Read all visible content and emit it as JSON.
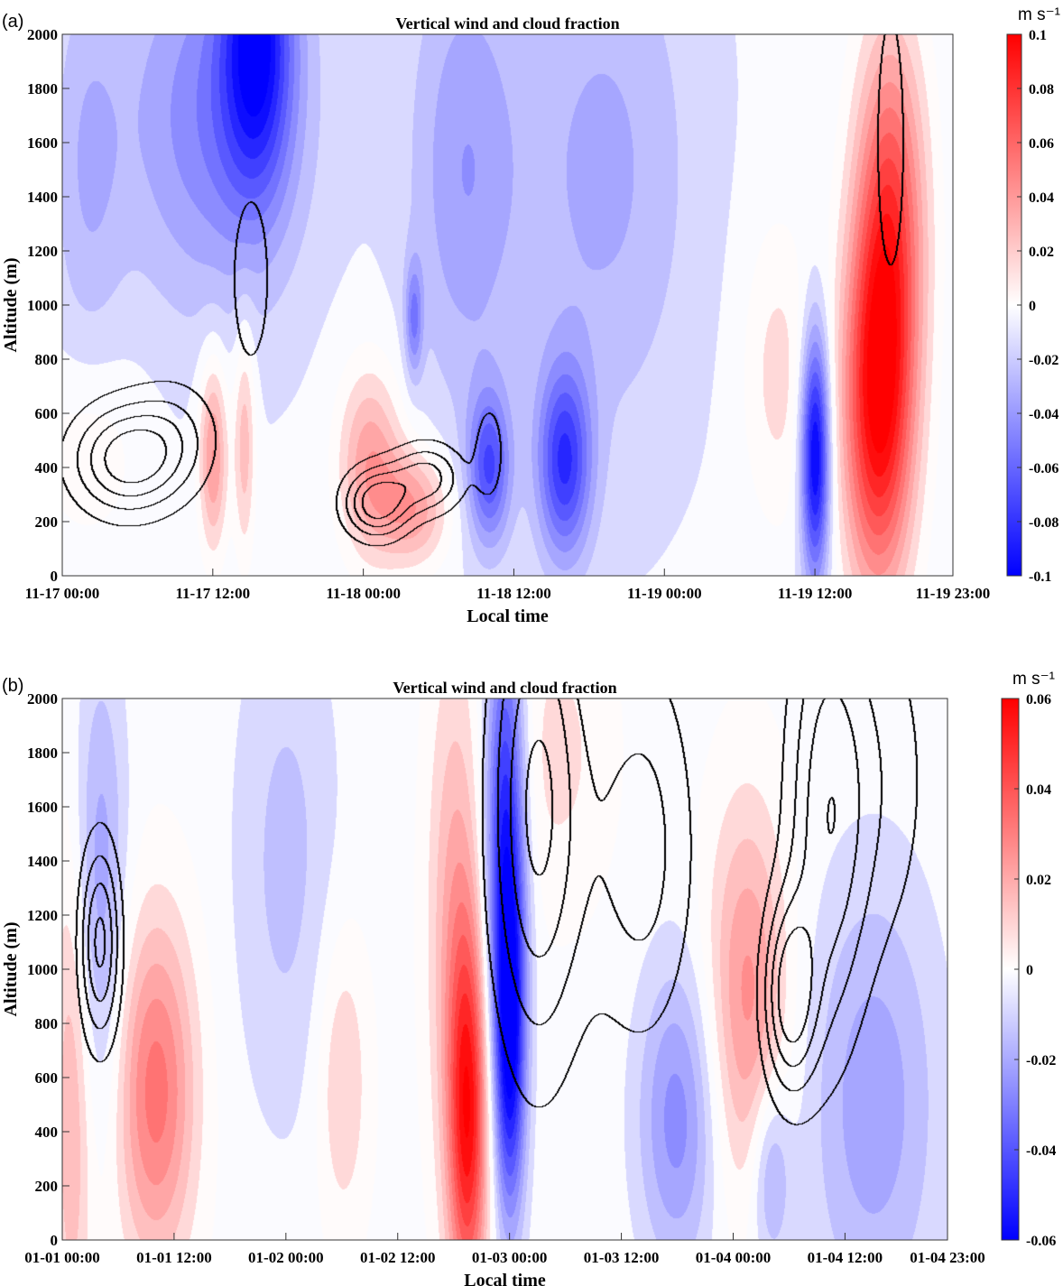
{
  "colors": {
    "neg": "#0000ff",
    "zero": "#ffffff",
    "pos": "#ff0000",
    "contour": "#000000"
  },
  "chart_data": [
    {
      "type": "heatmap",
      "panel_label": "(a)",
      "title": "Vertical wind and cloud fraction",
      "xlabel": "Local time",
      "ylabel": "Altitude (m)",
      "xlim_hours": [
        0,
        71
      ],
      "ylim": [
        0,
        2000
      ],
      "xticks": [
        {
          "h": 0,
          "label": "11-17 00:00"
        },
        {
          "h": 12,
          "label": "11-17 12:00"
        },
        {
          "h": 24,
          "label": "11-18 00:00"
        },
        {
          "h": 36,
          "label": "11-18 12:00"
        },
        {
          "h": 48,
          "label": "11-19 00:00"
        },
        {
          "h": 60,
          "label": "11-19 12:00"
        },
        {
          "h": 71,
          "label": "11-19 23:00"
        }
      ],
      "yticks": [
        0,
        200,
        400,
        600,
        800,
        1000,
        1200,
        1400,
        1600,
        1800,
        2000
      ],
      "colorbar": {
        "unit": "m s⁻¹",
        "range": [
          -0.1,
          0.1
        ],
        "ticks": [
          "0.1",
          "0.08",
          "0.06",
          "0.04",
          "0.02",
          "0",
          "-0.02",
          "-0.04",
          "-0.06",
          "-0.08",
          "-0.1"
        ]
      },
      "cloud_levels": [
        0.2,
        0.4,
        0.6,
        0.8
      ],
      "wind_baseline": -0.008,
      "wind_features": [
        [
          15.5,
          2000,
          -0.08,
          2,
          400
        ],
        [
          12,
          1700,
          -0.04,
          5,
          500
        ],
        [
          2,
          1500,
          -0.02,
          2,
          500
        ],
        [
          12,
          450,
          0.05,
          0.8,
          250
        ],
        [
          14.5,
          500,
          0.035,
          0.6,
          300
        ],
        [
          2,
          450,
          0.015,
          3,
          250
        ],
        [
          24.5,
          420,
          0.045,
          1.8,
          250
        ],
        [
          28,
          250,
          0.045,
          2,
          150
        ],
        [
          32,
          1500,
          -0.03,
          3,
          600
        ],
        [
          28,
          950,
          -0.04,
          0.5,
          150
        ],
        [
          34,
          400,
          -0.06,
          1.2,
          200
        ],
        [
          40,
          420,
          -0.07,
          1.5,
          250
        ],
        [
          43,
          1500,
          -0.025,
          5,
          700
        ],
        [
          57,
          750,
          0.022,
          2,
          400
        ],
        [
          60,
          450,
          -0.1,
          0.8,
          320
        ],
        [
          65,
          600,
          0.1,
          2,
          480
        ],
        [
          66,
          1350,
          0.07,
          2,
          500
        ]
      ],
      "cloud_features": [
        [
          5,
          430,
          0.9,
          3,
          140
        ],
        [
          9,
          520,
          0.35,
          2.5,
          150
        ],
        [
          15,
          1100,
          0.33,
          1.3,
          280
        ],
        [
          25,
          270,
          0.95,
          1.8,
          90
        ],
        [
          29,
          360,
          0.7,
          2,
          90
        ],
        [
          34,
          460,
          0.33,
          0.9,
          140
        ],
        [
          66,
          1600,
          0.33,
          1,
          450
        ]
      ]
    },
    {
      "type": "heatmap",
      "panel_label": "(b)",
      "title": "Vertical wind and cloud fraction",
      "xlabel": "Local time",
      "ylabel": "Altitude (m)",
      "xlim_hours": [
        0,
        95
      ],
      "ylim": [
        0,
        2000
      ],
      "xticks": [
        {
          "h": 0,
          "label": "01-01 00:00"
        },
        {
          "h": 12,
          "label": "01-01 12:00"
        },
        {
          "h": 24,
          "label": "01-02 00:00"
        },
        {
          "h": 36,
          "label": "01-02 12:00"
        },
        {
          "h": 48,
          "label": "01-03 00:00"
        },
        {
          "h": 60,
          "label": "01-03 12:00"
        },
        {
          "h": 72,
          "label": "01-04 00:00"
        },
        {
          "h": 84,
          "label": "01-04 12:00"
        },
        {
          "h": 95,
          "label": "01-04 23:00"
        }
      ],
      "yticks": [
        0,
        200,
        400,
        600,
        800,
        1000,
        1200,
        1400,
        1600,
        1800,
        2000
      ],
      "colorbar": {
        "unit": "m s⁻¹",
        "range": [
          -0.06,
          0.06
        ],
        "ticks": [
          "0.06",
          "0.04",
          "0.02",
          "0",
          "-0.02",
          "-0.04",
          "-0.06"
        ]
      },
      "cloud_levels": [
        0.2,
        0.4,
        0.6,
        0.8
      ],
      "wind_baseline": -0.002,
      "wind_features": [
        [
          10,
          550,
          0.035,
          3,
          450
        ],
        [
          1,
          500,
          0.02,
          1.5,
          700
        ],
        [
          4,
          1300,
          -0.02,
          2,
          600
        ],
        [
          30,
          600,
          0.015,
          2,
          400
        ],
        [
          43.5,
          450,
          0.055,
          1.5,
          500
        ],
        [
          42,
          1200,
          0.02,
          2,
          700
        ],
        [
          47.5,
          1500,
          -0.05,
          1.5,
          600
        ],
        [
          48,
          700,
          -0.05,
          1.2,
          450
        ],
        [
          53,
          1800,
          0.01,
          4,
          400
        ],
        [
          66,
          450,
          -0.025,
          3,
          400
        ],
        [
          73.5,
          900,
          0.028,
          3,
          500
        ],
        [
          76,
          250,
          -0.02,
          1.5,
          250
        ],
        [
          87,
          500,
          -0.02,
          5,
          600
        ],
        [
          24,
          1400,
          -0.012,
          4,
          700
        ]
      ],
      "cloud_features": [
        [
          4,
          1100,
          0.85,
          1.5,
          260
        ],
        [
          51,
          1600,
          0.85,
          3.5,
          650
        ],
        [
          62,
          1450,
          0.5,
          4,
          500
        ],
        [
          78,
          900,
          0.85,
          2,
          250
        ],
        [
          82,
          1550,
          0.7,
          3,
          600
        ],
        [
          88,
          1700,
          0.3,
          4,
          500
        ]
      ]
    }
  ]
}
